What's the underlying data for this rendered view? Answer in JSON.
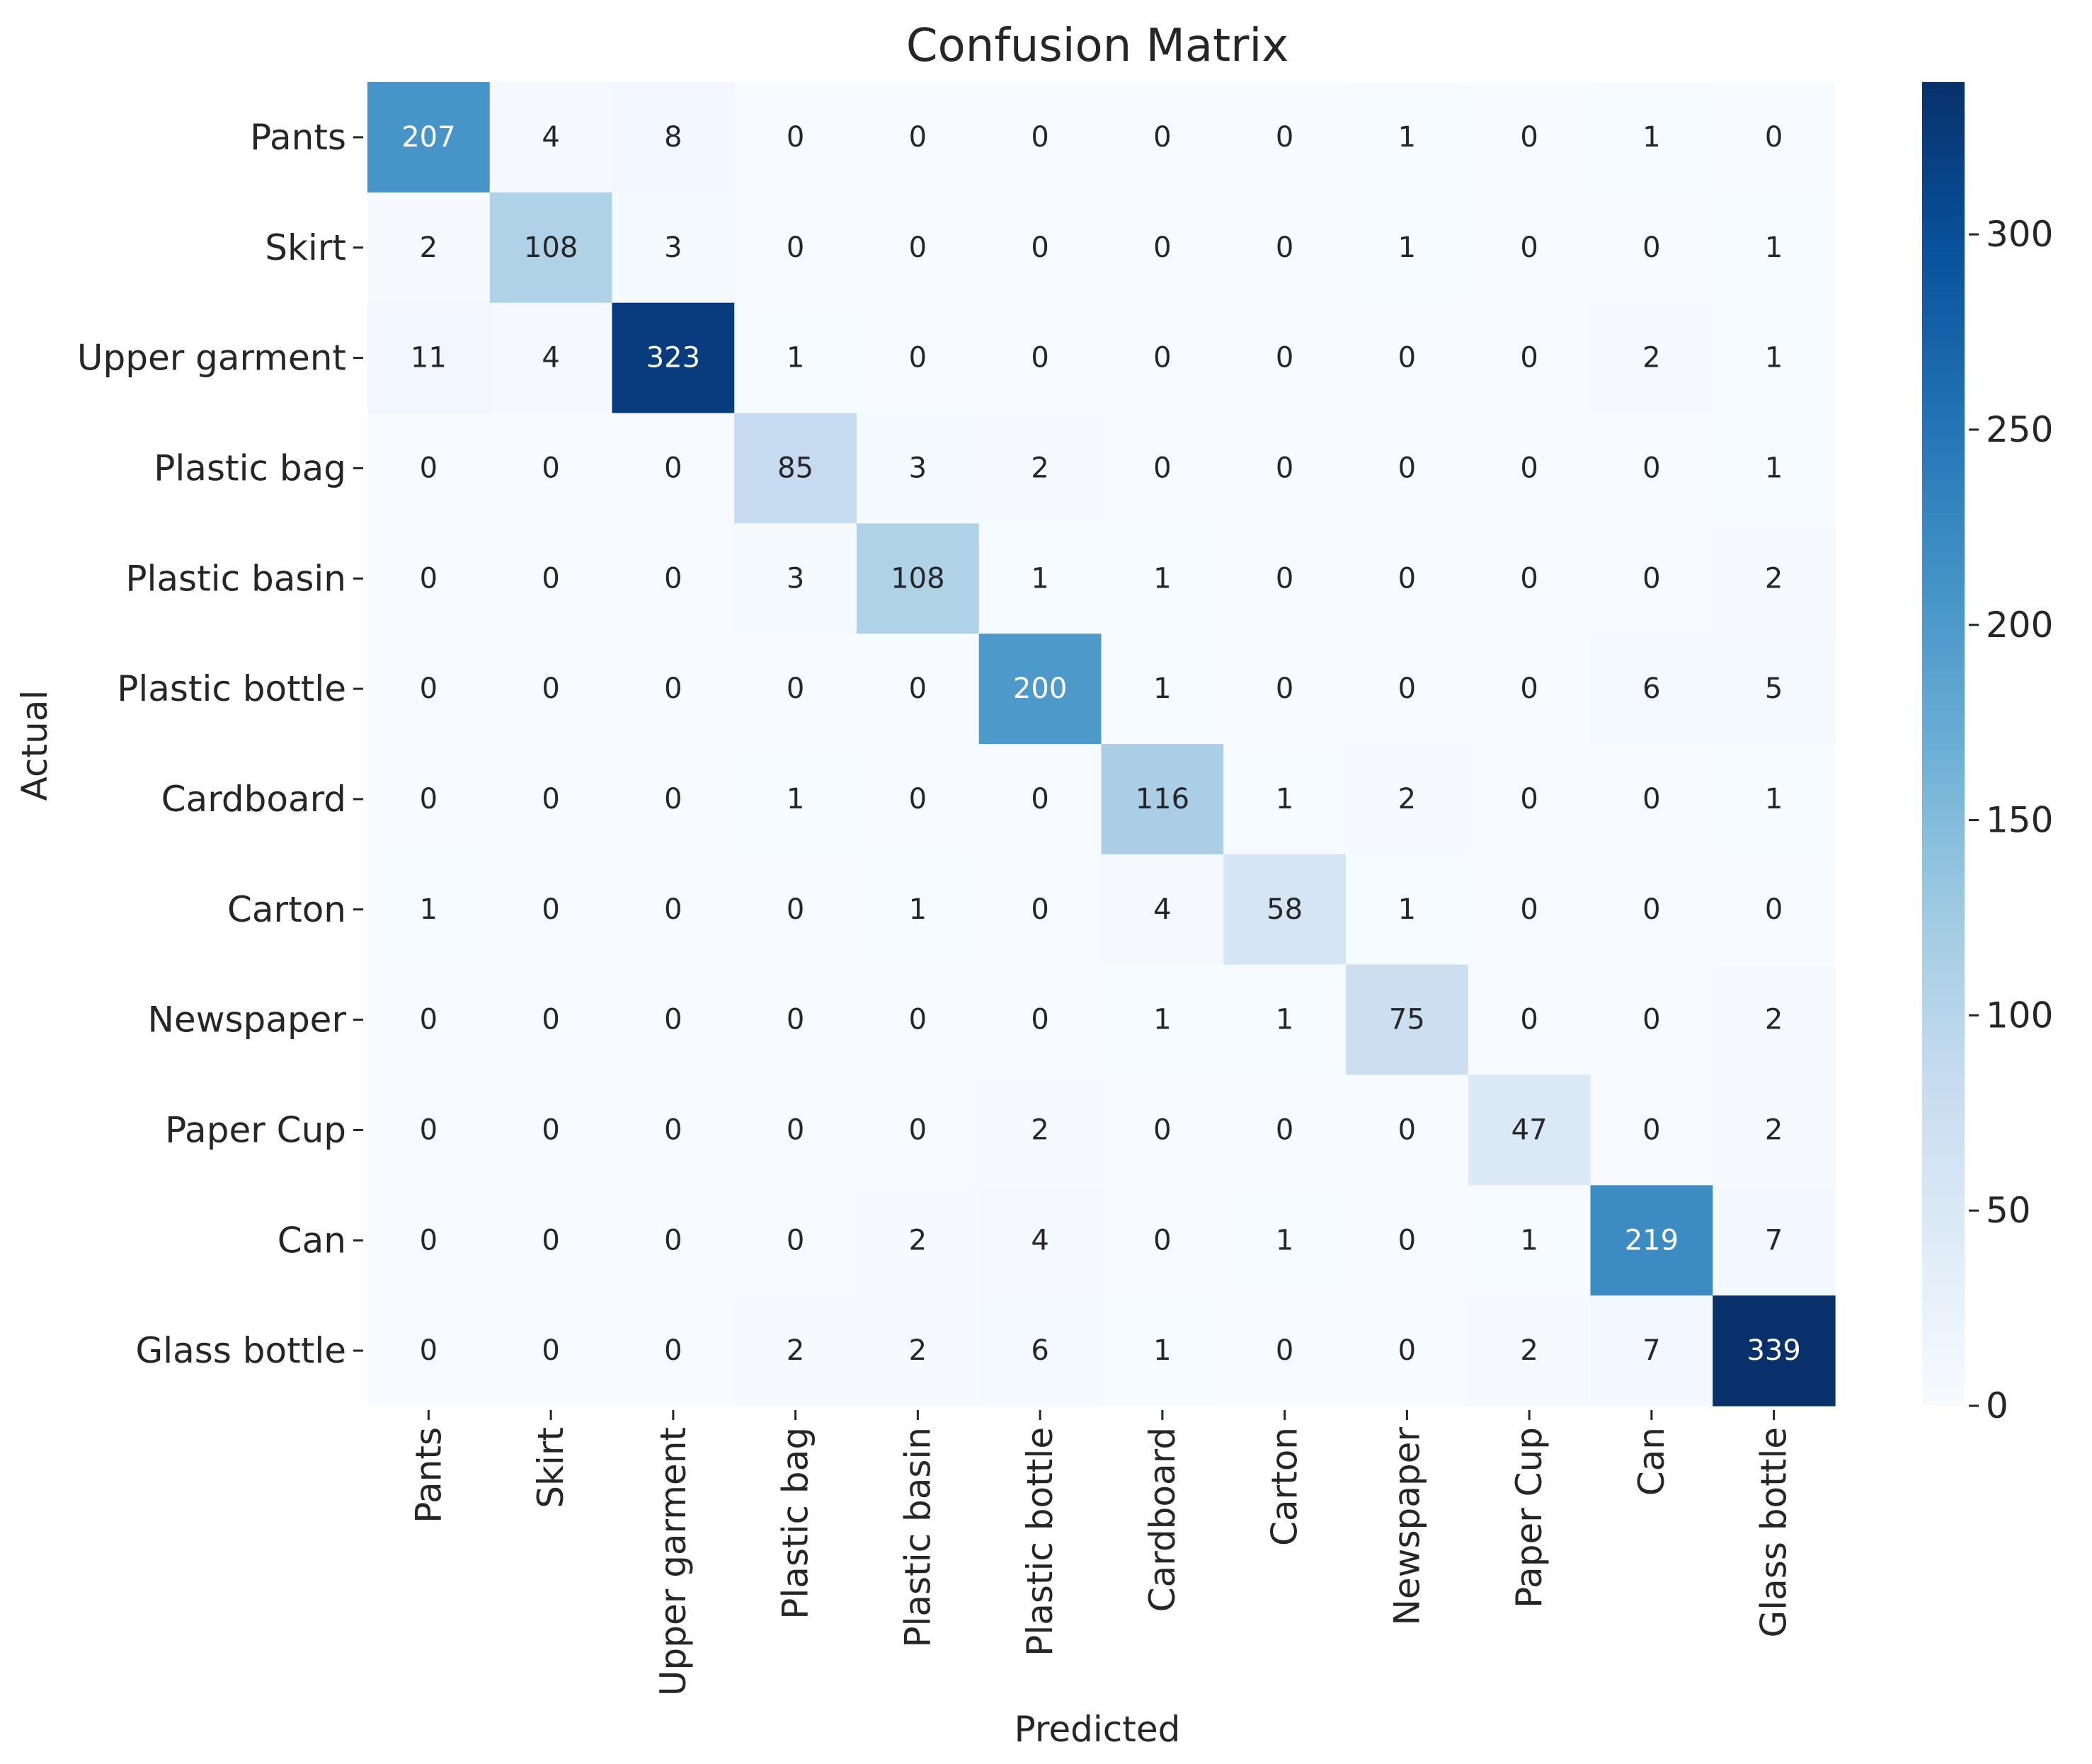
{
  "chart_data": {
    "type": "heatmap",
    "title": "Confusion Matrix",
    "xlabel": "Predicted",
    "ylabel": "Actual",
    "row_labels": [
      "Pants",
      "Skirt",
      "Upper garment",
      "Plastic bag",
      "Plastic basin",
      "Plastic bottle",
      "Cardboard",
      "Carton",
      "Newspaper",
      "Paper Cup",
      "Can",
      "Glass bottle"
    ],
    "col_labels": [
      "Pants",
      "Skirt",
      "Upper garment",
      "Plastic bag",
      "Plastic basin",
      "Plastic bottle",
      "Cardboard",
      "Carton",
      "Newspaper",
      "Paper Cup",
      "Can",
      "Glass bottle"
    ],
    "matrix": [
      [
        207,
        4,
        8,
        0,
        0,
        0,
        0,
        0,
        1,
        0,
        1,
        0
      ],
      [
        2,
        108,
        3,
        0,
        0,
        0,
        0,
        0,
        1,
        0,
        0,
        1
      ],
      [
        11,
        4,
        323,
        1,
        0,
        0,
        0,
        0,
        0,
        0,
        2,
        1
      ],
      [
        0,
        0,
        0,
        85,
        3,
        2,
        0,
        0,
        0,
        0,
        0,
        1
      ],
      [
        0,
        0,
        0,
        3,
        108,
        1,
        1,
        0,
        0,
        0,
        0,
        2
      ],
      [
        0,
        0,
        0,
        0,
        0,
        200,
        1,
        0,
        0,
        0,
        6,
        5
      ],
      [
        0,
        0,
        0,
        1,
        0,
        0,
        116,
        1,
        2,
        0,
        0,
        1
      ],
      [
        1,
        0,
        0,
        0,
        1,
        0,
        4,
        58,
        1,
        0,
        0,
        0
      ],
      [
        0,
        0,
        0,
        0,
        0,
        0,
        1,
        1,
        75,
        0,
        0,
        2
      ],
      [
        0,
        0,
        0,
        0,
        0,
        2,
        0,
        0,
        0,
        47,
        0,
        2
      ],
      [
        0,
        0,
        0,
        0,
        2,
        4,
        0,
        1,
        0,
        1,
        219,
        7
      ],
      [
        0,
        0,
        0,
        2,
        2,
        6,
        1,
        0,
        0,
        2,
        7,
        339
      ]
    ],
    "colorbar": {
      "colormap": "Blues",
      "vmin": 0,
      "vmax": 339,
      "ticks": [
        0,
        50,
        100,
        150,
        200,
        250,
        300
      ]
    },
    "colors": {
      "text_dark": "#262626",
      "text_light": "#ffffff",
      "background": "#ffffff"
    }
  }
}
